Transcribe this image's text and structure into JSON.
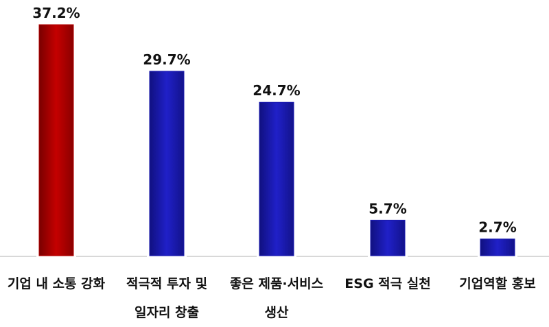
{
  "chart_data": {
    "type": "bar",
    "categories": [
      [
        "기업 내 소통 강화"
      ],
      [
        "적극적 투자 및",
        "일자리 창출"
      ],
      [
        "좋은 제품·서비스",
        "생산"
      ],
      [
        "ESG 적극 실천"
      ],
      [
        "기업역할 홍보"
      ]
    ],
    "values": [
      37.2,
      29.7,
      24.7,
      5.7,
      2.7
    ],
    "data_labels": [
      "37.2%",
      "29.7%",
      "24.7%",
      "5.7%",
      "2.7%"
    ],
    "colors": [
      "#b30000",
      "#1a1ab0",
      "#1a1ab0",
      "#1a1ab0",
      "#1a1ab0"
    ],
    "ylim": [
      0,
      37.2
    ],
    "grid": false,
    "title": "",
    "xlabel": "",
    "ylabel": ""
  }
}
